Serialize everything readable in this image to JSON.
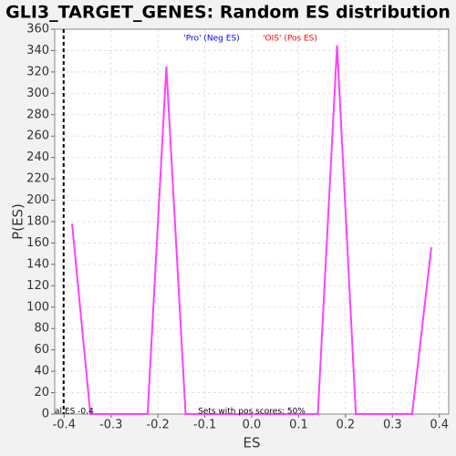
{
  "chart_data": {
    "type": "line",
    "title": "GLI3_TARGET_GENES: Random ES distribution",
    "x_label": "ES",
    "y_label": "P(ES)",
    "x": [
      -0.383,
      -0.344,
      -0.222,
      -0.182,
      -0.141,
      0.141,
      0.182,
      0.222,
      0.342,
      0.383
    ],
    "series": [
      {
        "name": "P(ES)",
        "color": "#ff40ff",
        "values": [
          178,
          0,
          0,
          325,
          0,
          0,
          345,
          0,
          0,
          156
        ]
      }
    ],
    "xlim": [
      -0.42,
      0.42
    ],
    "xticks": [
      -0.4,
      -0.3,
      -0.2,
      -0.1,
      {
        "value": 0,
        "label": "0.0"
      },
      0.1,
      0.2,
      0.3,
      0.4
    ],
    "ylim": [
      0,
      360
    ],
    "yticks": [
      0,
      20,
      40,
      60,
      80,
      100,
      120,
      140,
      160,
      180,
      200,
      220,
      240,
      260,
      280,
      300,
      320,
      340,
      360
    ],
    "grid": true,
    "actual_es": -0.401,
    "actual_es_label": "al ES -0.4",
    "pos_scores_label": "Sets with pos scores: 50%",
    "legend": [
      {
        "text": "'Pro' (Neg ES)",
        "color": "#0000ff"
      },
      {
        "text": "'OIS' (Pos ES)",
        "color": "#ff0000"
      }
    ]
  }
}
